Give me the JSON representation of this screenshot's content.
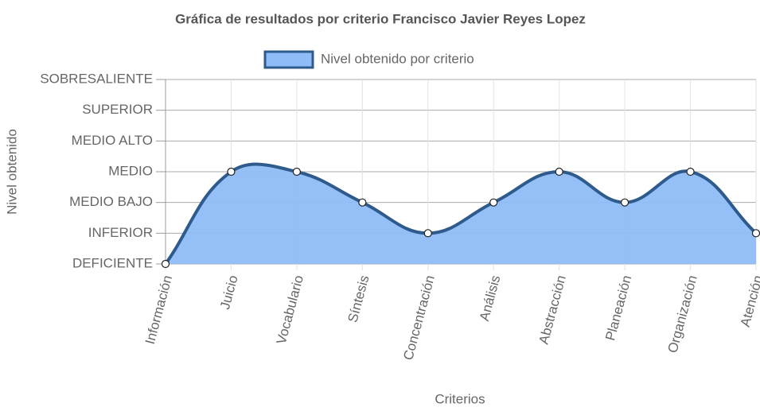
{
  "chart_data": {
    "type": "area",
    "title": "Gráfica de resultados por criterio Francisco Javier Reyes Lopez",
    "x_label": "Criterios",
    "y_label": "Nivel obtenido",
    "categories": [
      "Información",
      "Juicio",
      "Vocabulario",
      "Síntesis",
      "Concentración",
      "Análisis",
      "Abstracción",
      "Planeación",
      "Organización",
      "Atención"
    ],
    "series": [
      {
        "name": "Nivel obtenido por criterio",
        "color": "#2f5b8c",
        "fill": "#8ebcf7",
        "values": [
          0,
          3,
          3,
          2,
          1,
          2,
          3,
          2,
          3,
          1
        ]
      }
    ],
    "ylim": [
      0,
      6
    ],
    "yticks": [
      {
        "value": 0,
        "label": "DEFICIENTE"
      },
      {
        "value": 1,
        "label": "INFERIOR"
      },
      {
        "value": 2,
        "label": "MEDIO BAJO"
      },
      {
        "value": 3,
        "label": "MEDIO"
      },
      {
        "value": 4,
        "label": "MEDIO ALTO"
      },
      {
        "value": 5,
        "label": "SUPERIOR"
      },
      {
        "value": 6,
        "label": "SOBRESALIENTE"
      }
    ],
    "grid": true,
    "legend": "top"
  }
}
